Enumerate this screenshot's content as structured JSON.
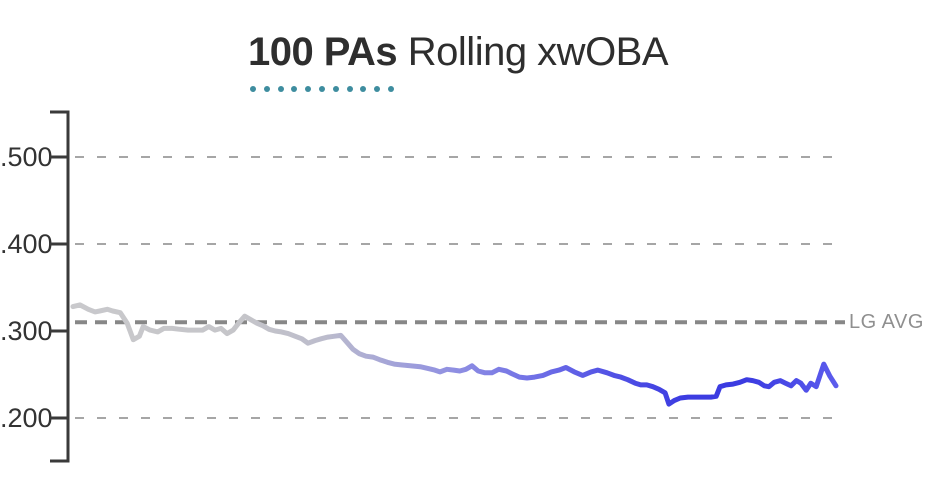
{
  "title": {
    "window": "100 PAs",
    "metric": "Rolling xwOBA",
    "underline_dot_count": 11,
    "underline_dot_color": "#3E8D9F"
  },
  "chart_data": {
    "type": "line",
    "title": "100 PAs Rolling xwOBA",
    "rolling_window": "100 PAs",
    "metric": "Rolling xwOBA",
    "x_axis": {
      "label": "",
      "tick_labels_visible": false
    },
    "y_axis": {
      "range": [
        0.15,
        0.55
      ],
      "ticks": [
        {
          "label": ".500",
          "value": 0.5
        },
        {
          "label": ".400",
          "value": 0.4
        },
        {
          "label": ".300",
          "value": 0.3
        },
        {
          "label": ".200",
          "value": 0.2
        }
      ],
      "gridline_values": [
        0.5,
        0.4,
        0.2
      ],
      "gridline_style": "dashed"
    },
    "league_avg": {
      "label": "LG AVG",
      "value": 0.31
    },
    "series": [
      {
        "name": "rolling-xwoba-100pa",
        "points": [
          [
            0.0,
            0.328
          ],
          [
            0.009,
            0.33
          ],
          [
            0.02,
            0.325
          ],
          [
            0.029,
            0.322
          ],
          [
            0.035,
            0.323
          ],
          [
            0.045,
            0.325
          ],
          [
            0.052,
            0.323
          ],
          [
            0.062,
            0.321
          ],
          [
            0.071,
            0.309
          ],
          [
            0.079,
            0.29
          ],
          [
            0.087,
            0.294
          ],
          [
            0.092,
            0.305
          ],
          [
            0.101,
            0.301
          ],
          [
            0.111,
            0.299
          ],
          [
            0.119,
            0.303
          ],
          [
            0.13,
            0.303
          ],
          [
            0.14,
            0.302
          ],
          [
            0.151,
            0.301
          ],
          [
            0.161,
            0.301
          ],
          [
            0.17,
            0.301
          ],
          [
            0.178,
            0.305
          ],
          [
            0.186,
            0.301
          ],
          [
            0.194,
            0.303
          ],
          [
            0.202,
            0.297
          ],
          [
            0.21,
            0.301
          ],
          [
            0.218,
            0.31
          ],
          [
            0.225,
            0.317
          ],
          [
            0.233,
            0.313
          ],
          [
            0.241,
            0.309
          ],
          [
            0.249,
            0.306
          ],
          [
            0.257,
            0.302
          ],
          [
            0.265,
            0.3
          ],
          [
            0.273,
            0.299
          ],
          [
            0.282,
            0.297
          ],
          [
            0.291,
            0.294
          ],
          [
            0.3,
            0.291
          ],
          [
            0.308,
            0.286
          ],
          [
            0.317,
            0.289
          ],
          [
            0.325,
            0.291
          ],
          [
            0.334,
            0.293
          ],
          [
            0.343,
            0.294
          ],
          [
            0.351,
            0.295
          ],
          [
            0.359,
            0.287
          ],
          [
            0.367,
            0.279
          ],
          [
            0.375,
            0.274
          ],
          [
            0.384,
            0.271
          ],
          [
            0.393,
            0.27
          ],
          [
            0.402,
            0.267
          ],
          [
            0.412,
            0.264
          ],
          [
            0.421,
            0.262
          ],
          [
            0.43,
            0.261
          ],
          [
            0.442,
            0.26
          ],
          [
            0.455,
            0.259
          ],
          [
            0.465,
            0.257
          ],
          [
            0.474,
            0.255
          ],
          [
            0.481,
            0.253
          ],
          [
            0.49,
            0.256
          ],
          [
            0.499,
            0.255
          ],
          [
            0.507,
            0.254
          ],
          [
            0.515,
            0.256
          ],
          [
            0.523,
            0.26
          ],
          [
            0.531,
            0.254
          ],
          [
            0.54,
            0.252
          ],
          [
            0.549,
            0.252
          ],
          [
            0.558,
            0.256
          ],
          [
            0.568,
            0.254
          ],
          [
            0.575,
            0.251
          ],
          [
            0.585,
            0.247
          ],
          [
            0.595,
            0.246
          ],
          [
            0.605,
            0.247
          ],
          [
            0.616,
            0.249
          ],
          [
            0.627,
            0.253
          ],
          [
            0.637,
            0.255
          ],
          [
            0.646,
            0.258
          ],
          [
            0.657,
            0.253
          ],
          [
            0.668,
            0.249
          ],
          [
            0.679,
            0.253
          ],
          [
            0.688,
            0.255
          ],
          [
            0.7,
            0.252
          ],
          [
            0.709,
            0.249
          ],
          [
            0.718,
            0.247
          ],
          [
            0.727,
            0.244
          ],
          [
            0.737,
            0.24
          ],
          [
            0.744,
            0.238
          ],
          [
            0.752,
            0.238
          ],
          [
            0.76,
            0.236
          ],
          [
            0.768,
            0.233
          ],
          [
            0.776,
            0.229
          ],
          [
            0.781,
            0.216
          ],
          [
            0.788,
            0.22
          ],
          [
            0.796,
            0.223
          ],
          [
            0.806,
            0.224
          ],
          [
            0.816,
            0.224
          ],
          [
            0.827,
            0.224
          ],
          [
            0.836,
            0.224
          ],
          [
            0.843,
            0.225
          ],
          [
            0.848,
            0.236
          ],
          [
            0.856,
            0.238
          ],
          [
            0.865,
            0.239
          ],
          [
            0.874,
            0.241
          ],
          [
            0.883,
            0.244
          ],
          [
            0.891,
            0.243
          ],
          [
            0.899,
            0.241
          ],
          [
            0.906,
            0.237
          ],
          [
            0.912,
            0.236
          ],
          [
            0.919,
            0.241
          ],
          [
            0.927,
            0.243
          ],
          [
            0.934,
            0.24
          ],
          [
            0.941,
            0.237
          ],
          [
            0.948,
            0.243
          ],
          [
            0.954,
            0.24
          ],
          [
            0.961,
            0.232
          ],
          [
            0.967,
            0.24
          ],
          [
            0.974,
            0.236
          ],
          [
            0.984,
            0.262
          ],
          [
            0.992,
            0.248
          ],
          [
            1.0,
            0.237
          ]
        ]
      }
    ],
    "line_gradient": [
      {
        "offset": 0.0,
        "color": "#C9C9CC"
      },
      {
        "offset": 0.22,
        "color": "#C5C5C9"
      },
      {
        "offset": 0.33,
        "color": "#BCBCCC"
      },
      {
        "offset": 0.42,
        "color": "#A3A3D8"
      },
      {
        "offset": 0.5,
        "color": "#8F8FE2"
      },
      {
        "offset": 0.6,
        "color": "#7171E6"
      },
      {
        "offset": 0.7,
        "color": "#5353E5"
      },
      {
        "offset": 0.8,
        "color": "#3C3CE1"
      },
      {
        "offset": 0.88,
        "color": "#3B3BE1"
      },
      {
        "offset": 0.95,
        "color": "#4D4DE8"
      },
      {
        "offset": 1.0,
        "color": "#5C5CEC"
      }
    ],
    "colors": {
      "axis": "#3A3A3A",
      "gridline": "#A6A6A6",
      "league_avg_line": "#878787",
      "league_avg_text": "#8F8F8F",
      "tick_label": "#333333",
      "title_text": "#2E2E2E",
      "background": "#FFFFFF"
    }
  }
}
